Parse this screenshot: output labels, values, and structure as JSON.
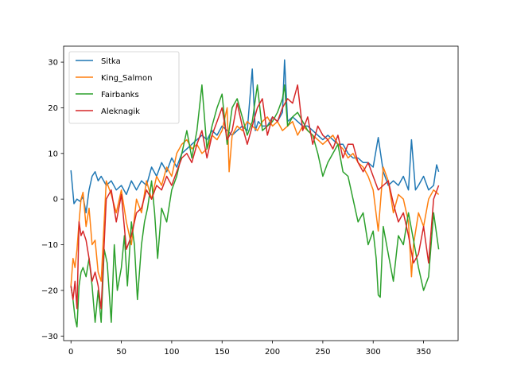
{
  "chart_data": {
    "type": "line",
    "title": "",
    "xlabel": "",
    "ylabel": "",
    "xlim": [
      -7.3,
      384.3
    ],
    "ylim": [
      -31.0,
      33.5
    ],
    "grid": false,
    "legend": {
      "placement": "top-left"
    },
    "x_ticks": [
      0,
      50,
      100,
      150,
      200,
      250,
      300,
      350
    ],
    "y_ticks": [
      -30,
      -20,
      -10,
      0,
      10,
      20,
      30
    ],
    "series": [
      {
        "name": "Sitka",
        "color": "#1f77b4",
        "x": [
          0,
          3,
          6,
          9,
          12,
          15,
          18,
          21,
          24,
          27,
          30,
          35,
          40,
          45,
          50,
          55,
          60,
          65,
          70,
          75,
          80,
          85,
          90,
          95,
          100,
          105,
          110,
          115,
          120,
          125,
          130,
          135,
          140,
          145,
          150,
          155,
          160,
          165,
          170,
          175,
          180,
          183,
          186,
          190,
          195,
          200,
          205,
          210,
          212,
          215,
          220,
          225,
          230,
          235,
          240,
          245,
          250,
          255,
          260,
          265,
          270,
          275,
          280,
          285,
          290,
          295,
          300,
          305,
          310,
          315,
          320,
          325,
          330,
          335,
          338,
          342,
          345,
          350,
          355,
          360,
          363,
          365
        ],
        "values": [
          6.3,
          -1.0,
          0.0,
          -0.5,
          0.5,
          -3.0,
          2.0,
          5.0,
          6.0,
          4.0,
          5.0,
          3.0,
          4.0,
          2.0,
          3.0,
          1.0,
          4.0,
          2.0,
          4.0,
          3.0,
          7.0,
          5.0,
          8.0,
          6.0,
          9.0,
          7.0,
          10.0,
          11.0,
          12.0,
          13.0,
          14.0,
          13.0,
          15.0,
          14.0,
          16.0,
          15.0,
          14.0,
          15.0,
          16.0,
          15.0,
          28.5,
          15.0,
          17.0,
          16.0,
          16.0,
          18.0,
          17.0,
          19.0,
          30.5,
          17.0,
          18.0,
          17.0,
          16.0,
          16.0,
          15.0,
          14.0,
          13.0,
          14.0,
          13.0,
          12.0,
          12.0,
          10.0,
          9.0,
          9.0,
          8.0,
          8.0,
          7.0,
          13.5,
          6.0,
          3.0,
          4.0,
          3.0,
          5.0,
          2.0,
          13.0,
          2.0,
          3.0,
          5.0,
          2.0,
          3.0,
          7.5,
          6.0
        ]
      },
      {
        "name": "King_Salmon",
        "color": "#ff7f0e",
        "x": [
          0,
          2,
          4,
          6,
          8,
          10,
          12,
          15,
          18,
          21,
          24,
          27,
          30,
          35,
          40,
          45,
          50,
          55,
          60,
          65,
          70,
          75,
          80,
          85,
          90,
          95,
          100,
          105,
          110,
          115,
          120,
          125,
          130,
          135,
          140,
          145,
          150,
          155,
          157,
          160,
          165,
          170,
          175,
          180,
          185,
          190,
          195,
          200,
          205,
          210,
          215,
          220,
          225,
          230,
          235,
          240,
          245,
          250,
          255,
          260,
          265,
          270,
          275,
          280,
          285,
          290,
          295,
          300,
          305,
          310,
          315,
          320,
          325,
          330,
          335,
          338,
          340,
          345,
          350,
          355,
          360,
          365
        ],
        "values": [
          -19.0,
          -13.0,
          -15.0,
          -11.0,
          -5.0,
          0.0,
          1.5,
          -6.0,
          -2.0,
          -10.0,
          -9.0,
          -16.0,
          -18.0,
          4.0,
          1.0,
          -3.0,
          2.0,
          -5.0,
          -10.0,
          0.0,
          -3.0,
          4.0,
          0.0,
          5.0,
          3.0,
          7.0,
          5.0,
          10.0,
          12.0,
          13.0,
          11.0,
          12.0,
          10.0,
          11.0,
          14.0,
          13.0,
          15.0,
          20.0,
          6.0,
          14.0,
          16.0,
          15.0,
          17.0,
          16.0,
          15.0,
          17.0,
          18.0,
          16.0,
          17.0,
          15.0,
          16.0,
          17.0,
          14.0,
          16.0,
          15.0,
          14.0,
          13.0,
          12.0,
          13.0,
          14.0,
          12.0,
          11.0,
          9.0,
          10.0,
          8.0,
          7.0,
          5.0,
          2.0,
          -7.0,
          7.0,
          4.0,
          -3.0,
          1.0,
          0.0,
          -5.0,
          -17.0,
          -10.0,
          -3.0,
          -6.0,
          0.0,
          2.0,
          1.0
        ]
      },
      {
        "name": "Fairbanks",
        "color": "#2ca02c",
        "x": [
          0,
          2,
          4,
          6,
          8,
          10,
          12,
          15,
          18,
          21,
          24,
          27,
          30,
          33,
          36,
          40,
          43,
          46,
          50,
          53,
          56,
          60,
          63,
          66,
          70,
          73,
          76,
          80,
          83,
          86,
          90,
          95,
          100,
          105,
          110,
          115,
          120,
          125,
          130,
          135,
          140,
          145,
          150,
          155,
          160,
          165,
          170,
          175,
          180,
          185,
          190,
          195,
          200,
          205,
          210,
          212,
          215,
          220,
          225,
          230,
          235,
          240,
          245,
          250,
          255,
          260,
          265,
          270,
          275,
          280,
          285,
          290,
          295,
          300,
          303,
          305,
          307,
          310,
          315,
          320,
          325,
          330,
          335,
          340,
          345,
          350,
          355,
          360,
          365
        ],
        "values": [
          -19.0,
          -22.0,
          -26.0,
          -28.0,
          -19.0,
          -16.0,
          -15.0,
          -17.0,
          -13.0,
          -19.0,
          -27.0,
          -20.0,
          -27.0,
          -11.0,
          -14.0,
          -27.0,
          -10.0,
          -20.0,
          -15.0,
          -8.0,
          -19.0,
          -5.0,
          -10.0,
          -22.0,
          -10.0,
          -5.0,
          -2.0,
          4.0,
          -3.0,
          -13.0,
          -2.0,
          -5.0,
          2.0,
          5.0,
          10.0,
          15.0,
          9.0,
          15.0,
          25.0,
          11.0,
          16.0,
          20.0,
          23.0,
          12.0,
          20.0,
          22.0,
          18.0,
          14.0,
          17.0,
          25.0,
          15.0,
          16.0,
          17.0,
          19.0,
          22.0,
          25.0,
          16.0,
          18.0,
          19.0,
          17.0,
          15.0,
          14.0,
          10.0,
          5.0,
          8.0,
          10.0,
          12.0,
          6.0,
          5.0,
          0.0,
          -5.0,
          -3.0,
          -10.0,
          -7.0,
          -13.0,
          -21.0,
          -21.5,
          -6.0,
          -12.0,
          -18.0,
          -8.0,
          -10.0,
          -3.0,
          -9.0,
          -15.0,
          -20.0,
          -17.0,
          -3.0,
          -11.0
        ]
      },
      {
        "name": "Aleknagik",
        "color": "#d62728",
        "x": [
          0,
          2,
          4,
          6,
          8,
          10,
          12,
          15,
          18,
          21,
          24,
          27,
          30,
          35,
          40,
          45,
          50,
          55,
          60,
          65,
          70,
          75,
          80,
          85,
          90,
          95,
          100,
          105,
          110,
          115,
          120,
          125,
          130,
          135,
          140,
          145,
          150,
          155,
          160,
          165,
          170,
          175,
          180,
          185,
          190,
          195,
          200,
          205,
          210,
          215,
          220,
          225,
          230,
          235,
          240,
          245,
          250,
          255,
          260,
          265,
          270,
          275,
          280,
          285,
          290,
          295,
          300,
          305,
          310,
          315,
          320,
          325,
          330,
          335,
          340,
          345,
          350,
          355,
          360,
          365
        ],
        "values": [
          -19.0,
          -22.0,
          -18.0,
          -24.0,
          -5.0,
          -8.0,
          -7.0,
          -9.0,
          -13.0,
          -18.0,
          -16.0,
          -19.0,
          -24.0,
          0.0,
          2.0,
          -5.0,
          1.0,
          -11.0,
          -8.0,
          -3.0,
          -2.0,
          2.0,
          0.0,
          3.0,
          2.0,
          5.0,
          3.0,
          6.0,
          9.0,
          10.0,
          8.0,
          12.0,
          15.0,
          9.0,
          14.0,
          17.0,
          20.0,
          13.0,
          15.0,
          21.0,
          16.0,
          12.0,
          16.0,
          20.0,
          22.0,
          14.0,
          18.0,
          17.0,
          20.0,
          22.0,
          21.0,
          25.0,
          15.0,
          18.0,
          12.0,
          16.0,
          14.0,
          13.0,
          11.0,
          14.0,
          9.0,
          12.0,
          12.0,
          8.0,
          6.0,
          8.0,
          5.0,
          2.0,
          3.0,
          4.0,
          -1.0,
          -5.0,
          -3.0,
          -8.0,
          -14.0,
          -12.0,
          -6.0,
          -14.0,
          0.0,
          3.0
        ]
      }
    ]
  }
}
